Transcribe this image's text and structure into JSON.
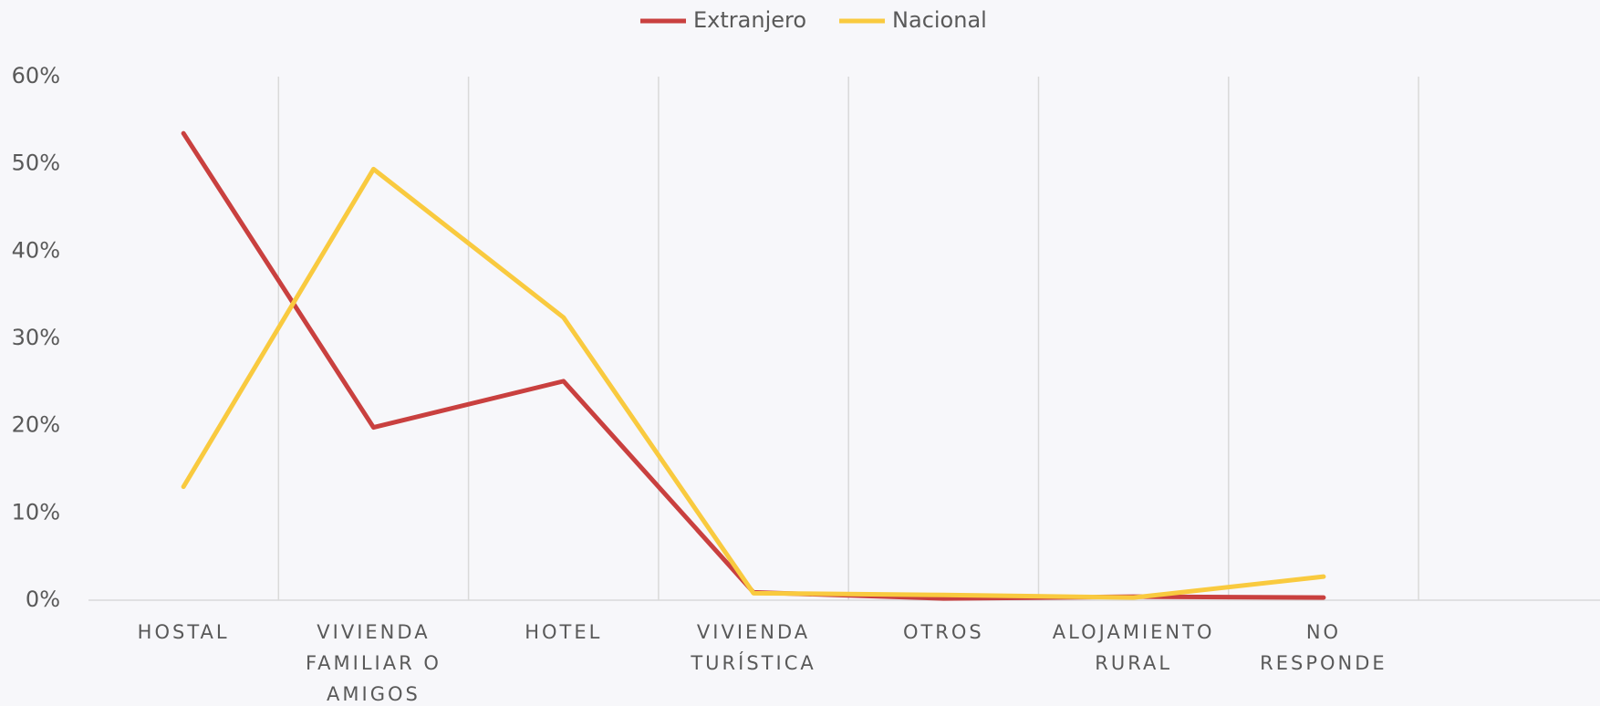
{
  "chart_data": {
    "type": "line",
    "categories": [
      "HOSTAL",
      "VIVIENDA FAMILIAR O AMIGOS",
      "HOTEL",
      "VIVIENDA TURÍSTICA",
      "OTROS",
      "ALOJAMIENTO RURAL",
      "NO RESPONDE",
      null
    ],
    "series": [
      {
        "name": "Extranjero",
        "color": "#c9403f",
        "values": [
          53.5,
          19.8,
          25.1,
          0.9,
          0.2,
          0.4,
          0.3,
          null
        ]
      },
      {
        "name": "Nacional",
        "color": "#f9ca3f",
        "values": [
          13.0,
          49.4,
          32.4,
          0.8,
          0.6,
          0.3,
          2.7,
          null
        ]
      }
    ],
    "ylim": [
      0,
      60
    ],
    "yticks": [
      {
        "value": 0,
        "label": "0%"
      },
      {
        "value": 10,
        "label": "10%"
      },
      {
        "value": 20,
        "label": "20%"
      },
      {
        "value": 30,
        "label": "30%"
      },
      {
        "value": 40,
        "label": "40%"
      },
      {
        "value": 50,
        "label": "50%"
      },
      {
        "value": 60,
        "label": "60%"
      }
    ],
    "grid": true,
    "legend": "top"
  }
}
